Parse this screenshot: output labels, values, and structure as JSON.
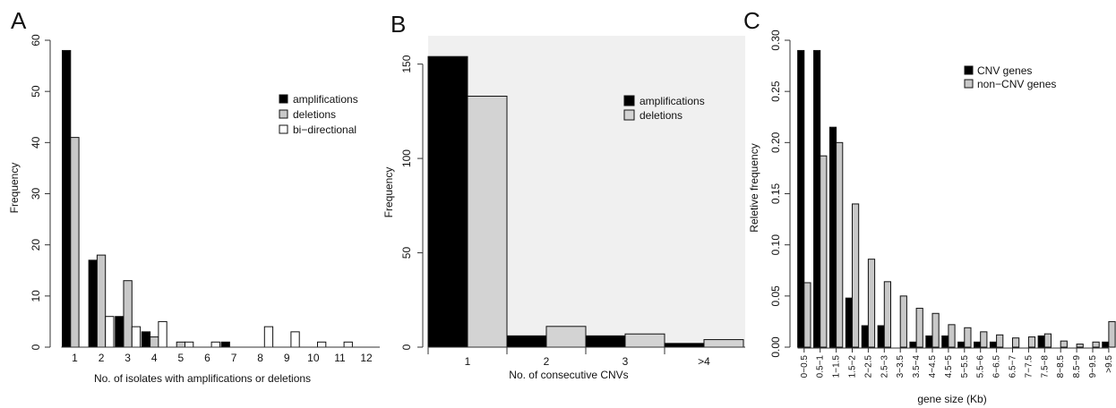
{
  "figure": {
    "panels": [
      "A",
      "B",
      "C"
    ]
  },
  "chart_data": [
    {
      "panel": "A",
      "type": "bar",
      "categories": [
        "1",
        "2",
        "3",
        "4",
        "5",
        "6",
        "7",
        "8",
        "9",
        "10",
        "11",
        "12"
      ],
      "series": [
        {
          "name": "amplifications",
          "color": "#000000",
          "values": [
            58,
            17,
            6,
            3,
            0,
            0,
            1,
            0,
            0,
            0,
            0,
            0
          ]
        },
        {
          "name": "deletions",
          "color": "#c8c8c8",
          "values": [
            41,
            18,
            13,
            2,
            1,
            0,
            0,
            0,
            0,
            0,
            0,
            0
          ]
        },
        {
          "name": "bi−directional",
          "color": "#ffffff",
          "values": [
            0,
            6,
            4,
            5,
            1,
            1,
            0,
            4,
            3,
            1,
            1,
            0
          ]
        }
      ],
      "ylim": [
        0,
        60
      ],
      "yticks": [
        "0",
        "10",
        "20",
        "30",
        "40",
        "50",
        "60"
      ],
      "xlabel": "No. of isolates with amplifications or deletions",
      "ylabel": "Frequency",
      "legend": "top-right"
    },
    {
      "panel": "B",
      "type": "bar",
      "categories": [
        "1",
        "2",
        "3",
        ">4"
      ],
      "series": [
        {
          "name": "amplifications",
          "color": "#000000",
          "values": [
            154,
            6,
            6,
            2
          ]
        },
        {
          "name": "deletions",
          "color": "#d3d3d3",
          "values": [
            133,
            11,
            7,
            4
          ]
        }
      ],
      "ylim": [
        0,
        160
      ],
      "yticks": [
        "0",
        "50",
        "100",
        "150"
      ],
      "xlabel": "No. of consecutive CNVs",
      "ylabel": "Frequency",
      "legend": "top-right",
      "background": "#f0f0f0"
    },
    {
      "panel": "C",
      "type": "bar",
      "categories": [
        "0−0.5",
        "0.5−1",
        "1−1.5",
        "1.5−2",
        "2−2.5",
        "2.5−3",
        "3−3.5",
        "3.5−4",
        "4−4.5",
        "4.5−5",
        "5−5.5",
        "5.5−6",
        "6−6.5",
        "6.5−7",
        "7−7.5",
        "7.5−8",
        "8−8.5",
        "8.5−9",
        "9−9.5",
        ">9.5"
      ],
      "series": [
        {
          "name": "CNV genes",
          "color": "#000000",
          "values": [
            0.29,
            0.29,
            0.215,
            0.048,
            0.021,
            0.021,
            0,
            0.005,
            0.011,
            0.011,
            0.005,
            0.005,
            0.005,
            0,
            0,
            0.011,
            0,
            0,
            0,
            0.005
          ]
        },
        {
          "name": "non−CNV genes",
          "color": "#c8c8c8",
          "values": [
            0.063,
            0.187,
            0.2,
            0.14,
            0.086,
            0.064,
            0.05,
            0.038,
            0.033,
            0.022,
            0.019,
            0.015,
            0.012,
            0.009,
            0.01,
            0.013,
            0.006,
            0.003,
            0.005,
            0.025
          ]
        }
      ],
      "ylim": [
        0,
        0.3
      ],
      "yticks": [
        "0.00",
        "0.05",
        "0.10",
        "0.15",
        "0.20",
        "0.25",
        "0.30"
      ],
      "xlabel": "gene size (Kb)",
      "ylabel": "Reletive frequency",
      "legend": "top-right"
    }
  ]
}
